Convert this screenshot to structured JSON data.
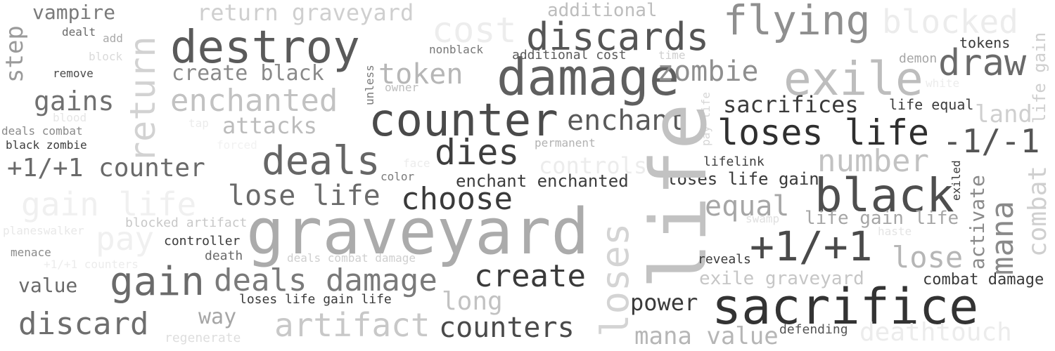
{
  "words": [
    {
      "t": "vampire",
      "c": "#7a7a7a"
    },
    {
      "t": "dealt",
      "c": "#6a6a6a"
    },
    {
      "t": "add",
      "c": "#a9a9a9"
    },
    {
      "t": "block",
      "c": "#dadada"
    },
    {
      "t": "remove",
      "c": "#4a4a4a"
    },
    {
      "t": "gains",
      "c": "#707070"
    },
    {
      "t": "blood",
      "c": "#e6e6e6"
    },
    {
      "t": "deals combat",
      "c": "#8a8a8a"
    },
    {
      "t": "black zombie",
      "c": "#3c3c3c"
    },
    {
      "t": "+1/+1 counter",
      "c": "#6a6a6a"
    },
    {
      "t": "gain life",
      "c": "#f0f0f0"
    },
    {
      "t": "planeswalker",
      "c": "#e8e8e8"
    },
    {
      "t": "menace",
      "c": "#8a8a8a"
    },
    {
      "t": "+1/+1 counters",
      "c": "#ececec"
    },
    {
      "t": "value",
      "c": "#6a6a6a"
    },
    {
      "t": "discard",
      "c": "#6e6e6e"
    },
    {
      "t": "step",
      "c": "#9a9a9a"
    },
    {
      "t": "return",
      "c": "#d2d2d2"
    },
    {
      "t": "return graveyard",
      "c": "#cfcfcf"
    },
    {
      "t": "destroy",
      "c": "#5a5a5a"
    },
    {
      "t": "create black",
      "c": "#8a8a8a"
    },
    {
      "t": "enchanted",
      "c": "#c2c2c2"
    },
    {
      "t": "tap",
      "c": "#ececec"
    },
    {
      "t": "attacks",
      "c": "#bcbcbc"
    },
    {
      "t": "forced",
      "c": "#f2f2f2"
    },
    {
      "t": "deals",
      "c": "#666666"
    },
    {
      "t": "pay",
      "c": "#f0f0f0"
    },
    {
      "t": "blocked artifact",
      "c": "#c8c8c8"
    },
    {
      "t": "controller",
      "c": "#3a3a3a"
    },
    {
      "t": "death",
      "c": "#6a6a6a"
    },
    {
      "t": "gain",
      "c": "#6a6a6a"
    },
    {
      "t": "deals damage",
      "c": "#7a7a7a"
    },
    {
      "t": "deals combat damage",
      "c": "#cfcfcf"
    },
    {
      "t": "loses life gain life",
      "c": "#3a3a3a"
    },
    {
      "t": "way",
      "c": "#a6a6a6"
    },
    {
      "t": "regenerate",
      "c": "#dedede"
    },
    {
      "t": "artifact",
      "c": "#c8c8c8"
    },
    {
      "t": "graveyard",
      "c": "#ababab"
    },
    {
      "t": "cost",
      "c": "#ededed"
    },
    {
      "t": "additional",
      "c": "#bdbdbd"
    },
    {
      "t": "discards",
      "c": "#555555"
    },
    {
      "t": "nonblack",
      "c": "#777777"
    },
    {
      "t": "additional cost",
      "c": "#5a5a5a"
    },
    {
      "t": "time",
      "c": "#cfcfcf"
    },
    {
      "t": "token",
      "c": "#b6b6b6"
    },
    {
      "t": "unless",
      "c": "#7a7a7a"
    },
    {
      "t": "owner",
      "c": "#bdbdbd"
    },
    {
      "t": "damage",
      "c": "#5f5f5f"
    },
    {
      "t": "counter",
      "c": "#4a4a4a"
    },
    {
      "t": "enchant",
      "c": "#5a5a5a"
    },
    {
      "t": "dies",
      "c": "#3e3e3e"
    },
    {
      "t": "permanent",
      "c": "#b2b2b2"
    },
    {
      "t": "face",
      "c": "#ececec"
    },
    {
      "t": "color",
      "c": "#7a7a7a"
    },
    {
      "t": "controls",
      "c": "#ececec"
    },
    {
      "t": "enchant enchanted",
      "c": "#3c3c3c"
    },
    {
      "t": "lose life",
      "c": "#6a6a6a"
    },
    {
      "t": "choose",
      "c": "#3a3a3a"
    },
    {
      "t": "create",
      "c": "#3a3a3a"
    },
    {
      "t": "long",
      "c": "#c2c2c2"
    },
    {
      "t": "counters",
      "c": "#4a4a4a"
    },
    {
      "t": "flying",
      "c": "#8f8f8f"
    },
    {
      "t": "blocked",
      "c": "#ececec"
    },
    {
      "t": "zombie",
      "c": "#8f8f8f"
    },
    {
      "t": "exile",
      "c": "#bdbdbd"
    },
    {
      "t": "sacrifices",
      "c": "#3a3a3a"
    },
    {
      "t": "pay life",
      "c": "#d6d6d6"
    },
    {
      "t": "loses life",
      "c": "#2f2f2f"
    },
    {
      "t": "lifelink",
      "c": "#3e3e3e"
    },
    {
      "t": "loses life gain",
      "c": "#3a3a3a"
    },
    {
      "t": "life",
      "c": "#c2c2c2"
    },
    {
      "t": "loses",
      "c": "#d4d4d4"
    },
    {
      "t": "equal",
      "c": "#a6a6a6"
    },
    {
      "t": "swamp",
      "c": "#e0e0e0"
    },
    {
      "t": "+1/+1",
      "c": "#4a4a4a"
    },
    {
      "t": "reveals",
      "c": "#3a3a3a"
    },
    {
      "t": "exile graveyard",
      "c": "#c6c6c6"
    },
    {
      "t": "power",
      "c": "#3a3a3a"
    },
    {
      "t": "sacrifice",
      "c": "#333333"
    },
    {
      "t": "mana value",
      "c": "#b6b6b6"
    },
    {
      "t": "defending",
      "c": "#555555"
    },
    {
      "t": "deathtouch",
      "c": "#ececec"
    },
    {
      "t": "tokens",
      "c": "#3a3a3a"
    },
    {
      "t": "demon",
      "c": "#a6a6a6"
    },
    {
      "t": "draw",
      "c": "#6a6a6a"
    },
    {
      "t": "white",
      "c": "#ececec"
    },
    {
      "t": "life equal",
      "c": "#3c3c3c"
    },
    {
      "t": "land",
      "c": "#cfcfcf"
    },
    {
      "t": "-1/-1",
      "c": "#555555"
    },
    {
      "t": "number",
      "c": "#c2c2c2"
    },
    {
      "t": "black",
      "c": "#4e4e4e"
    },
    {
      "t": "life gain life",
      "c": "#a6a6a6"
    },
    {
      "t": "haste",
      "c": "#e4e4e4"
    },
    {
      "t": "lose",
      "c": "#b6b6b6"
    },
    {
      "t": "combat damage",
      "c": "#3a3a3a"
    },
    {
      "t": "exiled",
      "c": "#3a3a3a"
    },
    {
      "t": "activate",
      "c": "#8a8a8a"
    },
    {
      "t": "mana",
      "c": "#8a8a8a"
    },
    {
      "t": "combat",
      "c": "#cfcfcf"
    },
    {
      "t": "life gain",
      "c": "#cfcfcf"
    }
  ]
}
